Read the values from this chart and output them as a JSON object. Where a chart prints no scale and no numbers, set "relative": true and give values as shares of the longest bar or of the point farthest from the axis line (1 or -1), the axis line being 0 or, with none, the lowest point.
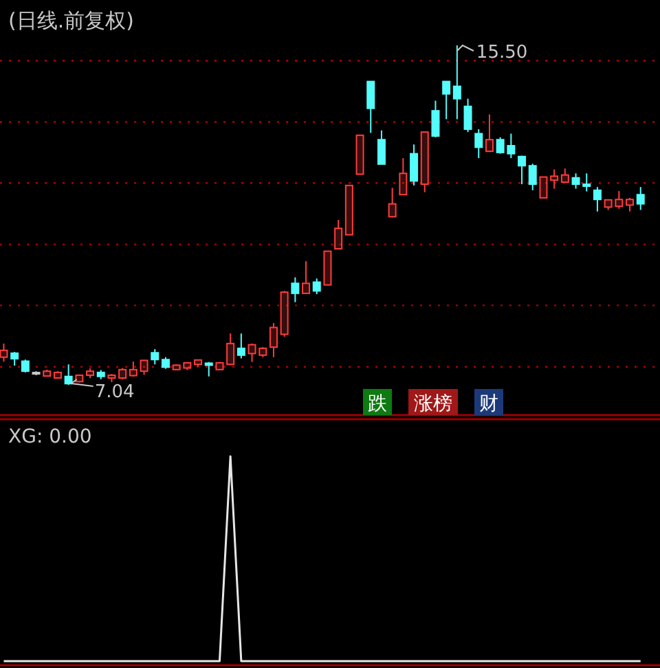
{
  "chart_data": [
    {
      "type": "candlestick",
      "title": "(日线.前复权)",
      "grid": "y",
      "categories": [
        null,
        null,
        null,
        null,
        null,
        null,
        null,
        null,
        null,
        null,
        null,
        null,
        null,
        null,
        null,
        null,
        null,
        null,
        null,
        null,
        null,
        null,
        null,
        null,
        null,
        null,
        null,
        null,
        null,
        null,
        null,
        null,
        null,
        null,
        null,
        null,
        null,
        null,
        null,
        null,
        null,
        null,
        null,
        null,
        null,
        null,
        null,
        null,
        null,
        null,
        null,
        null,
        null,
        null,
        null,
        null,
        null,
        null,
        null,
        null
      ],
      "ohlc": [
        [
          7.73,
          8.07,
          7.62,
          7.9
        ],
        [
          7.83,
          7.86,
          7.52,
          7.69
        ],
        [
          7.63,
          7.67,
          7.35,
          7.38
        ],
        [
          7.33,
          7.38,
          7.28,
          7.33
        ],
        [
          7.26,
          7.42,
          7.25,
          7.38
        ],
        [
          7.21,
          7.38,
          7.2,
          7.35
        ],
        [
          7.25,
          7.55,
          7.04,
          7.07
        ],
        [
          7.12,
          7.3,
          7.1,
          7.28
        ],
        [
          7.28,
          7.45,
          7.21,
          7.38
        ],
        [
          7.35,
          7.41,
          7.18,
          7.25
        ],
        [
          7.21,
          7.31,
          7.11,
          7.28
        ],
        [
          7.21,
          7.46,
          7.18,
          7.42
        ],
        [
          7.27,
          7.62,
          7.25,
          7.42
        ],
        [
          7.38,
          7.66,
          7.29,
          7.65
        ],
        [
          7.84,
          7.93,
          7.55,
          7.67
        ],
        [
          7.67,
          7.73,
          7.44,
          7.48
        ],
        [
          7.42,
          7.55,
          7.41,
          7.53
        ],
        [
          7.46,
          7.59,
          7.41,
          7.59
        ],
        [
          7.55,
          7.67,
          7.5,
          7.66
        ],
        [
          7.58,
          7.61,
          7.25,
          7.53
        ],
        [
          7.42,
          7.61,
          7.41,
          7.59
        ],
        [
          7.55,
          8.32,
          7.55,
          8.07
        ],
        [
          7.95,
          8.32,
          7.7,
          7.78
        ],
        [
          7.82,
          8.07,
          7.61,
          8.04
        ],
        [
          7.78,
          7.98,
          7.73,
          7.95
        ],
        [
          7.98,
          8.58,
          7.73,
          8.47
        ],
        [
          8.3,
          9.38,
          8.24,
          9.35
        ],
        [
          9.57,
          9.72,
          9.1,
          9.32
        ],
        [
          9.32,
          10.12,
          9.32,
          9.57
        ],
        [
          9.6,
          9.69,
          9.3,
          9.38
        ],
        [
          9.53,
          10.37,
          9.53,
          10.37
        ],
        [
          10.43,
          11.15,
          10.41,
          10.94
        ],
        [
          10.78,
          12.01,
          10.78,
          12.01
        ],
        [
          12.29,
          13.26,
          12.29,
          13.26
        ],
        [
          14.6,
          14.6,
          13.32,
          13.93
        ],
        [
          13.15,
          13.38,
          12.54,
          12.54
        ],
        [
          11.23,
          11.95,
          11.21,
          11.55
        ],
        [
          11.78,
          12.69,
          11.78,
          12.31
        ],
        [
          12.8,
          13.03,
          12.01,
          12.12
        ],
        [
          12.04,
          13.34,
          11.84,
          13.34
        ],
        [
          13.87,
          14.12,
          13.21,
          13.24
        ],
        [
          14.6,
          14.6,
          13.66,
          14.29
        ],
        [
          14.48,
          15.5,
          13.66,
          14.17
        ],
        [
          13.98,
          14.17,
          13.34,
          13.41
        ],
        [
          13.3,
          13.41,
          12.69,
          12.96
        ],
        [
          12.86,
          13.78,
          12.84,
          13.15
        ],
        [
          13.15,
          13.21,
          12.8,
          12.83
        ],
        [
          13.0,
          13.3,
          12.69,
          12.8
        ],
        [
          12.73,
          12.75,
          12.04,
          12.5
        ],
        [
          12.5,
          12.55,
          11.89,
          12.04
        ],
        [
          11.7,
          12.22,
          11.7,
          12.22
        ],
        [
          12.14,
          12.41,
          11.93,
          12.24
        ],
        [
          12.09,
          12.43,
          12.09,
          12.27
        ],
        [
          12.2,
          12.31,
          11.93,
          12.04
        ],
        [
          12.04,
          12.31,
          11.86,
          11.99
        ],
        [
          11.89,
          11.97,
          11.36,
          11.66
        ],
        [
          11.47,
          11.66,
          11.4,
          11.65
        ],
        [
          11.49,
          11.87,
          11.43,
          11.66
        ],
        [
          11.52,
          11.7,
          11.36,
          11.66
        ],
        [
          11.78,
          11.97,
          11.4,
          11.55
        ]
      ],
      "colors": [
        "#ff3c3c",
        "#54fcfc",
        "#54fcfc",
        "#c8c8c8",
        "#ff3c3c",
        "#ff3c3c",
        "#54fcfc",
        "#ff3c3c",
        "#ff3c3c",
        "#54fcfc",
        "#ff3c3c",
        "#ff3c3c",
        "#ff3c3c",
        "#ff3c3c",
        "#54fcfc",
        "#54fcfc",
        "#ff3c3c",
        "#ff3c3c",
        "#ff3c3c",
        "#54fcfc",
        "#ff3c3c",
        "#ff3c3c",
        "#54fcfc",
        "#ff3c3c",
        "#ff3c3c",
        "#ff3c3c",
        "#ff3c3c",
        "#54fcfc",
        "#ff3c3c",
        "#54fcfc",
        "#ff3c3c",
        "#ff3c3c",
        "#ff3c3c",
        "#ff3c3c",
        "#54fcfc",
        "#54fcfc",
        "#ff3c3c",
        "#ff3c3c",
        "#54fcfc",
        "#ff3c3c",
        "#54fcfc",
        "#54fcfc",
        "#54fcfc",
        "#54fcfc",
        "#54fcfc",
        "#ff3c3c",
        "#54fcfc",
        "#54fcfc",
        "#54fcfc",
        "#54fcfc",
        "#ff3c3c",
        "#ff3c3c",
        "#ff3c3c",
        "#54fcfc",
        "#54fcfc",
        "#54fcfc",
        "#ff3c3c",
        "#ff3c3c",
        "#ff3c3c",
        "#54fcfc"
      ],
      "yticks": [
        {
          "value": 15.12,
          "label": null
        },
        {
          "value": 13.59,
          "label": null
        },
        {
          "value": 12.07,
          "label": null
        },
        {
          "value": 10.54,
          "label": null
        },
        {
          "value": 9.02,
          "label": null
        },
        {
          "value": 7.49,
          "label": null
        }
      ],
      "annotations": [
        "15.50",
        "7.04",
        "跌",
        "涨榜",
        "财"
      ]
    },
    {
      "type": "line",
      "title": "XG: 0.00",
      "relative": true,
      "categories": [
        null,
        null,
        null,
        null,
        null,
        null,
        null,
        null,
        null,
        null,
        null,
        null,
        null,
        null,
        null,
        null,
        null,
        null,
        null,
        null,
        null,
        null,
        null,
        null,
        null,
        null,
        null,
        null,
        null,
        null,
        null,
        null,
        null,
        null,
        null,
        null,
        null,
        null,
        null,
        null,
        null,
        null,
        null,
        null,
        null,
        null,
        null,
        null,
        null,
        null,
        null,
        null,
        null,
        null,
        null,
        null,
        null,
        null,
        null,
        null
      ],
      "series": [
        {
          "color": "#e6e6e6",
          "values": [
            0,
            0,
            0,
            0,
            0,
            0,
            0,
            0,
            0,
            0,
            0,
            0,
            0,
            0,
            0,
            0,
            0,
            0,
            0,
            0,
            0,
            1,
            0,
            0,
            0,
            0,
            0,
            0,
            0,
            0,
            0,
            0,
            0,
            0,
            0,
            0,
            0,
            0,
            0,
            0,
            0,
            0,
            0,
            0,
            0,
            0,
            0,
            0,
            0,
            0,
            0,
            0,
            0,
            0,
            0,
            0,
            0,
            0,
            0,
            0
          ]
        }
      ]
    }
  ]
}
